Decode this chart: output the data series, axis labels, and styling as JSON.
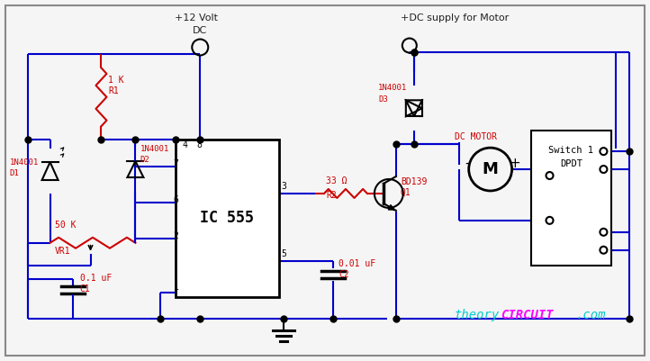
{
  "bg_color": "#f5f5f5",
  "wire_color": "#0000cc",
  "red_color": "#cc0000",
  "black": "#000000",
  "label_color": "#cc0000",
  "theory_cyan": "#00cccc",
  "theory_magenta": "#ff00ff",
  "figsize": [
    7.22,
    4.01
  ],
  "dpi": 100,
  "title": "+12 Volt",
  "dc_label": "DC",
  "motor_supply": "+DC supply for Motor",
  "r1_label": "1 K\nR1",
  "d1_label": "1N4001\nD1",
  "d2_label": "1N4001\nD2",
  "vr1_label": "50 K\nVR1",
  "c1_label": "0.1 uF\nC1",
  "ic_label": "IC 555",
  "r2_label": "33 Ω\nR2",
  "c2_label": "0.01 uF\nC2",
  "d3_label": "1N4001\nD3",
  "q1_label": "BD139\nQ1",
  "motor_label": "DC MOTOR",
  "switch_label": "Switch 1\nDPDT",
  "theory_text": "theory",
  "circuit_text": "CIRCUIT",
  "com_text": ".com"
}
